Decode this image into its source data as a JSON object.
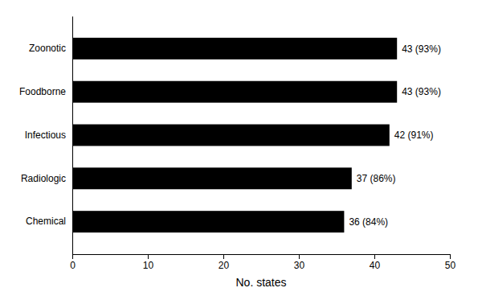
{
  "chart_data": {
    "type": "bar",
    "orientation": "horizontal",
    "categories": [
      "Chemical",
      "Radiologic",
      "Infectious",
      "Foodborne",
      "Zoonotic"
    ],
    "values": [
      36,
      37,
      42,
      43,
      43
    ],
    "value_labels": [
      "36 (84%)",
      "37 (86%)",
      "42 (91%)",
      "43 (93%)",
      "43 (93%)"
    ],
    "color": "#000000",
    "xlabel": "No. states",
    "xlim": [
      0,
      50
    ],
    "xticks": [
      0,
      10,
      20,
      30,
      40,
      50
    ],
    "grid": false
  }
}
